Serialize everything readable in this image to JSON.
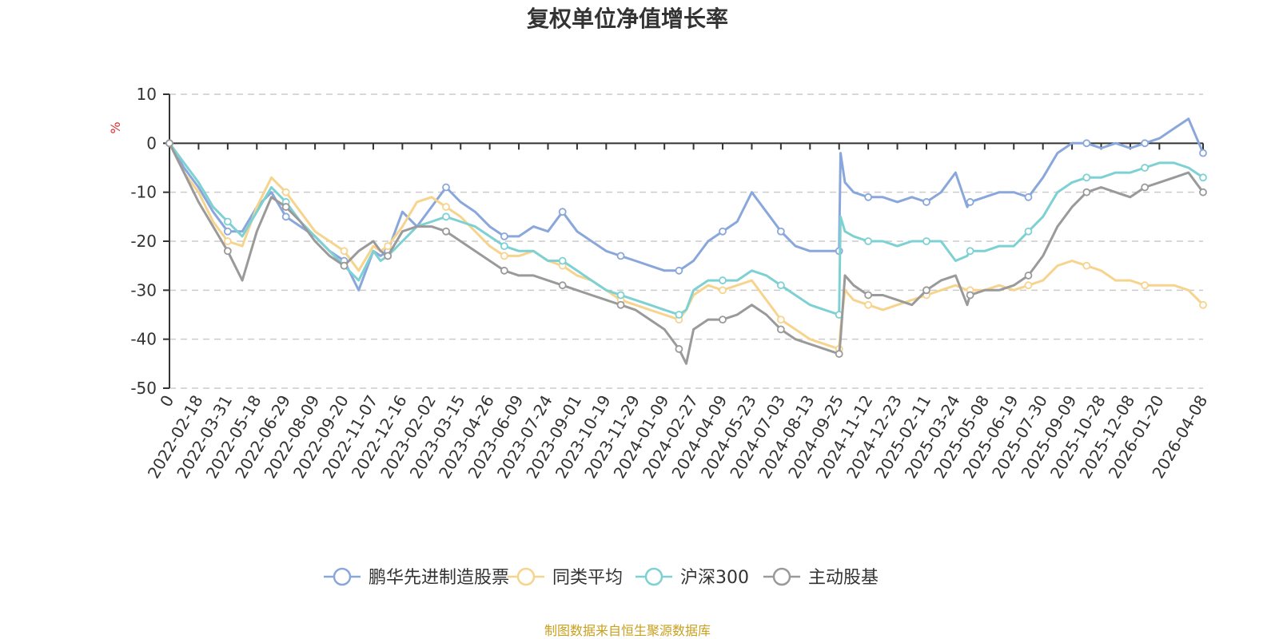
{
  "chart_data": {
    "type": "line",
    "title": "复权单位净值增长率",
    "ylabel": "%",
    "ylim": [
      -50,
      10
    ],
    "yticks": [
      10,
      0,
      -10,
      -20,
      -30,
      -40,
      -50
    ],
    "x_labels": [
      "0",
      "2022-02-18",
      "2022-03-31",
      "2022-05-18",
      "2022-06-29",
      "2022-08-09",
      "2022-09-20",
      "2022-11-07",
      "2022-12-16",
      "2023-02-02",
      "2023-03-15",
      "2023-04-26",
      "2023-06-09",
      "2023-07-24",
      "2023-09-01",
      "2023-10-19",
      "2023-11-29",
      "2024-01-09",
      "2024-02-27",
      "2024-04-09",
      "2024-05-23",
      "2024-07-03",
      "2024-08-13",
      "2024-09-25",
      "2024-11-12",
      "2024-12-23",
      "2025-02-11",
      "2025-03-24",
      "2025-05-08",
      "2025-06-19",
      "2025-07-30",
      "2025-09-09",
      "2025-10-28",
      "2025-12-08",
      "2026-01-20",
      "2026-04-08"
    ],
    "x_label_positions": [
      0,
      1,
      2,
      3,
      4,
      5,
      6,
      7,
      8,
      9,
      10,
      11,
      12,
      13,
      14,
      15,
      16,
      17,
      18,
      19,
      20,
      21,
      22,
      23,
      24,
      25,
      26,
      27,
      28,
      29,
      30,
      31,
      32,
      33,
      34,
      35.5
    ],
    "x_max": 35.5,
    "x": [
      0,
      0.5,
      1,
      1.5,
      2,
      2.5,
      3,
      3.5,
      4,
      4.5,
      5,
      5.5,
      6,
      6.5,
      7,
      7.25,
      7.5,
      8,
      8.5,
      9,
      9.5,
      10,
      10.5,
      11,
      11.5,
      12,
      12.5,
      13,
      13.5,
      14,
      14.5,
      15,
      15.5,
      16,
      16.5,
      17,
      17.5,
      17.75,
      18,
      18.5,
      19,
      19.5,
      20,
      20.5,
      21,
      21.5,
      22,
      22.5,
      23,
      23.05,
      23.2,
      23.5,
      24,
      24.5,
      25,
      25.5,
      26,
      26.5,
      27,
      27.4,
      27.5,
      28,
      28.5,
      29,
      29.5,
      30,
      30.5,
      31,
      31.5,
      32,
      32.5,
      33,
      33.5,
      34,
      34.5,
      35,
      35.5
    ],
    "series": [
      {
        "name": "鹏华先进制造股票",
        "color": "#8aa7dc",
        "values": [
          0,
          -5,
          -9,
          -14,
          -18,
          -18,
          -13,
          -10,
          -15,
          -17,
          -19,
          -22,
          -24,
          -30,
          -22,
          -23,
          -22,
          -14,
          -17,
          -13,
          -9,
          -12,
          -14,
          -17,
          -19,
          -19,
          -17,
          -18,
          -14,
          -18,
          -20,
          -22,
          -23,
          -24,
          -25,
          -26,
          -26,
          -25,
          -24,
          -20,
          -18,
          -16,
          -10,
          -14,
          -18,
          -21,
          -22,
          -22,
          -22,
          -2,
          -8,
          -10,
          -11,
          -11,
          -12,
          -11,
          -12,
          -10,
          -6,
          -13,
          -12,
          -11,
          -10,
          -10,
          -11,
          -7,
          -2,
          0,
          0,
          -1,
          0,
          -1,
          0,
          1,
          3,
          5,
          -2
        ]
      },
      {
        "name": "同类平均",
        "color": "#f7d48e",
        "values": [
          0,
          -6,
          -10,
          -16,
          -20,
          -21,
          -13,
          -7,
          -10,
          -14,
          -18,
          -20,
          -22,
          -26,
          -21,
          -22,
          -21,
          -17,
          -12,
          -11,
          -13,
          -15,
          -18,
          -21,
          -23,
          -23,
          -22,
          -24,
          -25,
          -27,
          -28,
          -30,
          -32,
          -33,
          -34,
          -35,
          -36,
          -34,
          -31,
          -29,
          -30,
          -29,
          -28,
          -32,
          -36,
          -38,
          -40,
          -41,
          -42,
          -38,
          -30,
          -32,
          -33,
          -34,
          -33,
          -32,
          -31,
          -30,
          -29,
          -30,
          -30,
          -30,
          -29,
          -30,
          -29,
          -28,
          -25,
          -24,
          -25,
          -26,
          -28,
          -28,
          -29,
          -29,
          -29,
          -30,
          -33
        ]
      },
      {
        "name": "沪深300",
        "color": "#7ed1d3",
        "values": [
          0,
          -4,
          -8,
          -13,
          -16,
          -19,
          -14,
          -9,
          -12,
          -16,
          -19,
          -22,
          -25,
          -28,
          -22,
          -24,
          -23,
          -20,
          -17,
          -16,
          -15,
          -16,
          -17,
          -19,
          -21,
          -22,
          -22,
          -24,
          -24,
          -26,
          -28,
          -30,
          -31,
          -32,
          -33,
          -34,
          -35,
          -34,
          -30,
          -28,
          -28,
          -28,
          -26,
          -27,
          -29,
          -31,
          -33,
          -34,
          -35,
          -15,
          -18,
          -19,
          -20,
          -20,
          -21,
          -20,
          -20,
          -20,
          -24,
          -23,
          -22,
          -22,
          -21,
          -21,
          -18,
          -15,
          -10,
          -8,
          -7,
          -7,
          -6,
          -6,
          -5,
          -4,
          -4,
          -5,
          -7
        ]
      },
      {
        "name": "主动股基",
        "color": "#9a9a9a",
        "values": [
          0,
          -6,
          -12,
          -17,
          -22,
          -28,
          -18,
          -11,
          -13,
          -16,
          -20,
          -23,
          -25,
          -22,
          -20,
          -22,
          -23,
          -18,
          -17,
          -17,
          -18,
          -20,
          -22,
          -24,
          -26,
          -27,
          -27,
          -28,
          -29,
          -30,
          -31,
          -32,
          -33,
          -34,
          -36,
          -38,
          -42,
          -45,
          -38,
          -36,
          -36,
          -35,
          -33,
          -35,
          -38,
          -40,
          -41,
          -42,
          -43,
          -40,
          -27,
          -29,
          -31,
          -31,
          -32,
          -33,
          -30,
          -28,
          -27,
          -33,
          -31,
          -30,
          -30,
          -29,
          -27,
          -23,
          -17,
          -13,
          -10,
          -9,
          -10,
          -11,
          -9,
          -8,
          -7,
          -6,
          -10
        ]
      }
    ],
    "legend_position": "bottom",
    "grid": true
  },
  "source": "制图数据来自恒生聚源数据库"
}
